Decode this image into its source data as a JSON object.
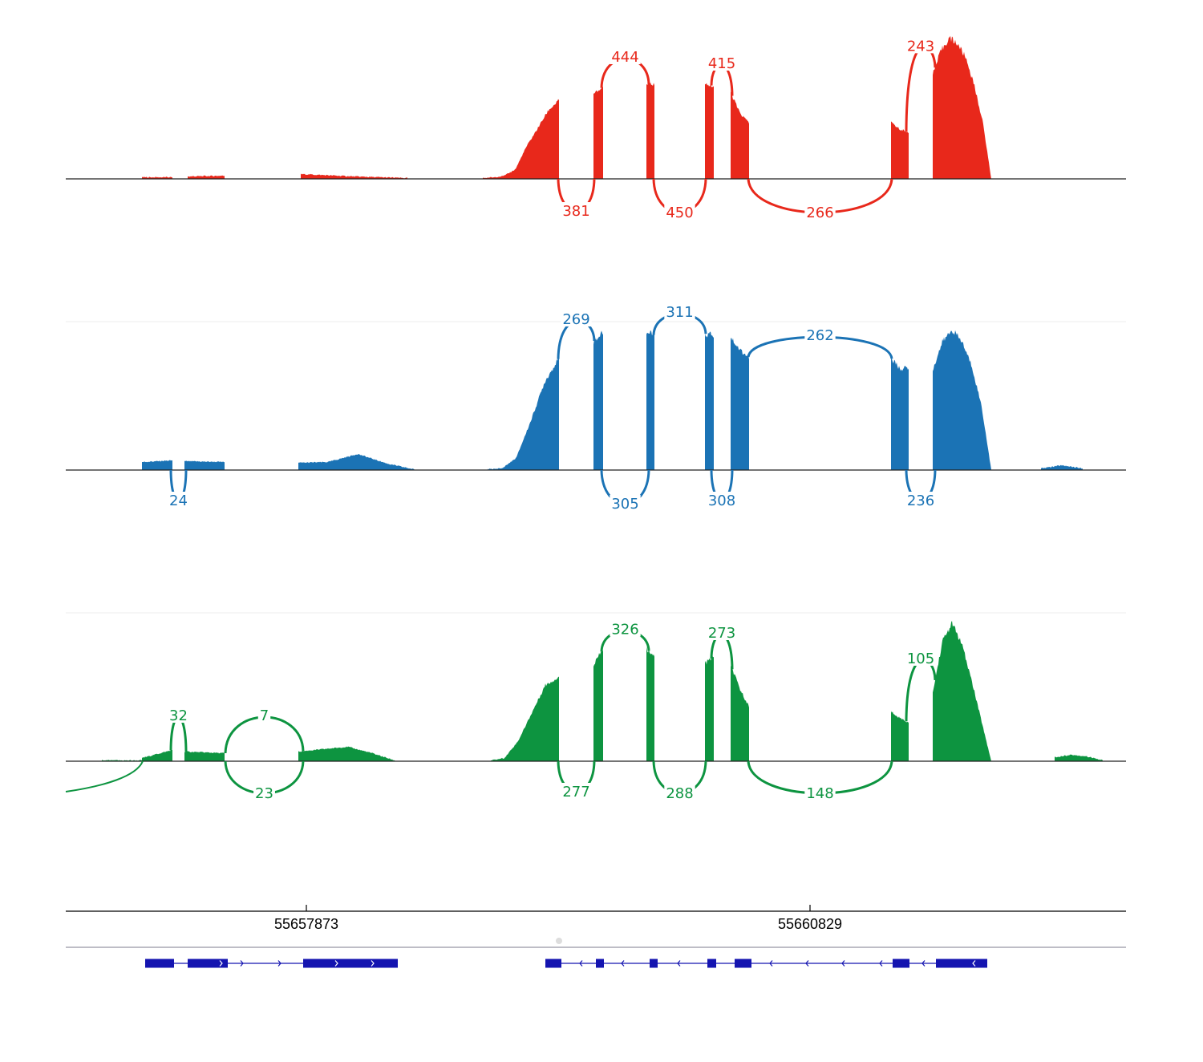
{
  "chart_data": {
    "type": "sashimi",
    "x_axis": {
      "ticks": [
        "55657873",
        "55660829"
      ]
    },
    "tracks": [
      {
        "color": "#e8281b",
        "coverage_blocks": [
          {
            "x": [
              177,
              215
            ],
            "levels": [
              2,
              2
            ]
          },
          {
            "x": [
              234,
              280
            ],
            "levels": [
              3,
              4
            ]
          },
          {
            "x": [
              375,
              508
            ],
            "levels": [
              6,
              3,
              1
            ]
          },
          {
            "x": [
              602,
              697
            ],
            "levels": [
              1,
              2,
              4,
              12,
              40,
              62,
              85,
              98
            ]
          },
          {
            "x": [
              740,
              752
            ],
            "levels": [
              105,
              115
            ]
          },
          {
            "x": [
              806,
              816
            ],
            "levels": [
              118,
              118
            ]
          },
          {
            "x": [
              879,
              890
            ],
            "levels": [
              120,
              115
            ]
          },
          {
            "x": [
              911,
              934
            ],
            "levels": [
              108,
              82,
              70
            ]
          },
          {
            "x": [
              1111,
              1133
            ],
            "levels": [
              70,
              62,
              58
            ]
          },
          {
            "x": [
              1163,
              1236
            ],
            "levels": [
              130,
              160,
              176,
              168,
              150,
              115,
              70,
              0
            ]
          }
        ],
        "junctions": [
          {
            "label": "444",
            "side": "above",
            "from": 750,
            "to": 809,
            "height": 150
          },
          {
            "label": "415",
            "side": "above",
            "from": 887,
            "to": 913,
            "height": 142
          },
          {
            "label": "243",
            "side": "above",
            "from": 1130,
            "to": 1166,
            "height": 104
          },
          {
            "label": "381",
            "side": "below",
            "from": 696,
            "to": 741,
            "height": 40
          },
          {
            "label": "450",
            "side": "below",
            "from": 815,
            "to": 880,
            "height": 42
          },
          {
            "label": "266",
            "side": "below",
            "from": 933,
            "to": 1112,
            "height": 42
          }
        ]
      },
      {
        "color": "#1b73b5",
        "coverage_blocks": [
          {
            "x": [
              177,
              215
            ],
            "levels": [
              10,
              12
            ]
          },
          {
            "x": [
              230,
              280
            ],
            "levels": [
              11,
              10
            ]
          },
          {
            "x": [
              372,
              520
            ],
            "levels": [
              9,
              10,
              20,
              8,
              0
            ]
          },
          {
            "x": [
              608,
              697
            ],
            "levels": [
              1,
              2,
              15,
              60,
              110,
              140
            ]
          },
          {
            "x": [
              740,
              752
            ],
            "levels": [
              160,
              172
            ]
          },
          {
            "x": [
              806,
              816
            ],
            "levels": [
              172,
              168
            ]
          },
          {
            "x": [
              879,
              890
            ],
            "levels": [
              170,
              168
            ]
          },
          {
            "x": [
              911,
              934
            ],
            "levels": [
              166,
              150,
              140
            ]
          },
          {
            "x": [
              1111,
              1133
            ],
            "levels": [
              140,
              126,
              128
            ]
          },
          {
            "x": [
              1163,
              1236
            ],
            "levels": [
              125,
              160,
              175,
              160,
              130,
              80,
              0
            ]
          },
          {
            "x": [
              1298,
              1350
            ],
            "levels": [
              2,
              6,
              2
            ]
          }
        ],
        "junctions": [
          {
            "label": "269",
            "side": "above",
            "from": 696,
            "to": 741,
            "height": 42
          },
          {
            "label": "311",
            "side": "above",
            "from": 815,
            "to": 880,
            "height": 42
          },
          {
            "label": "262",
            "side": "above",
            "from": 933,
            "to": 1112,
            "height": 44
          },
          {
            "label": "24",
            "side": "below",
            "from": 213,
            "to": 232,
            "height": 38
          },
          {
            "label": "305",
            "side": "below",
            "from": 750,
            "to": 809,
            "height": 42
          },
          {
            "label": "308",
            "side": "below",
            "from": 887,
            "to": 913,
            "height": 38
          },
          {
            "label": "236",
            "side": "below",
            "from": 1130,
            "to": 1166,
            "height": 38
          }
        ]
      },
      {
        "color": "#0d9440",
        "coverage_blocks": [
          {
            "x": [
              127,
              177
            ],
            "levels": [
              1,
              1
            ]
          },
          {
            "x": [
              177,
              215
            ],
            "levels": [
              4,
              14
            ]
          },
          {
            "x": [
              230,
              280
            ],
            "levels": [
              12,
              10
            ]
          },
          {
            "x": [
              372,
              495
            ],
            "levels": [
              12,
              15,
              18,
              10,
              0
            ]
          },
          {
            "x": [
              612,
              697
            ],
            "levels": [
              1,
              4,
              25,
              60,
              95,
              105
            ]
          },
          {
            "x": [
              740,
              752
            ],
            "levels": [
              120,
              140
            ]
          },
          {
            "x": [
              806,
              816
            ],
            "levels": [
              140,
              132
            ]
          },
          {
            "x": [
              879,
              890
            ],
            "levels": [
              122,
              130
            ]
          },
          {
            "x": [
              911,
              934
            ],
            "levels": [
              120,
              90,
              68
            ]
          },
          {
            "x": [
              1111,
              1133
            ],
            "levels": [
              62,
              54,
              48
            ]
          },
          {
            "x": [
              1163,
              1236
            ],
            "levels": [
              85,
              150,
              172,
              145,
              100,
              50,
              0
            ]
          },
          {
            "x": [
              1315,
              1375
            ],
            "levels": [
              5,
              8,
              6,
              1
            ]
          }
        ],
        "junctions": [
          {
            "label": "32",
            "side": "above",
            "from": 213,
            "to": 232,
            "height": 55
          },
          {
            "label": "7",
            "side": "above",
            "from": 281,
            "to": 378,
            "height": 55
          },
          {
            "label": "326",
            "side": "above",
            "from": 750,
            "to": 809,
            "height": 42
          },
          {
            "label": "273",
            "side": "above",
            "from": 887,
            "to": 913,
            "height": 158
          },
          {
            "label": "105",
            "side": "above",
            "from": 1130,
            "to": 1166,
            "height": 87
          },
          {
            "label": "23",
            "side": "below",
            "from": 281,
            "to": 378,
            "height": 40
          },
          {
            "label": "277",
            "side": "below",
            "from": 696,
            "to": 741,
            "height": 38
          },
          {
            "label": "288",
            "side": "below",
            "from": 815,
            "to": 880,
            "height": 40
          },
          {
            "label": "148",
            "side": "below",
            "from": 933,
            "to": 1112,
            "height": 40
          }
        ]
      }
    ],
    "gene_models": [
      {
        "strand": "+",
        "x": [
          181,
          496
        ],
        "exons": [
          [
            181,
            217
          ],
          [
            234,
            284
          ],
          [
            378,
            496
          ]
        ],
        "arrows": [
          277,
          303,
          350,
          421,
          466
        ]
      },
      {
        "strand": "-",
        "x": [
          680,
          1231
        ],
        "exons": [
          [
            680,
            700
          ],
          [
            743,
            753
          ],
          [
            810,
            820
          ],
          [
            882,
            893
          ],
          [
            916,
            937
          ],
          [
            1113,
            1134
          ],
          [
            1167,
            1231
          ]
        ],
        "arrows": [
          723,
          775,
          845,
          960,
          1005,
          1050,
          1097,
          1150,
          1213
        ]
      }
    ]
  }
}
